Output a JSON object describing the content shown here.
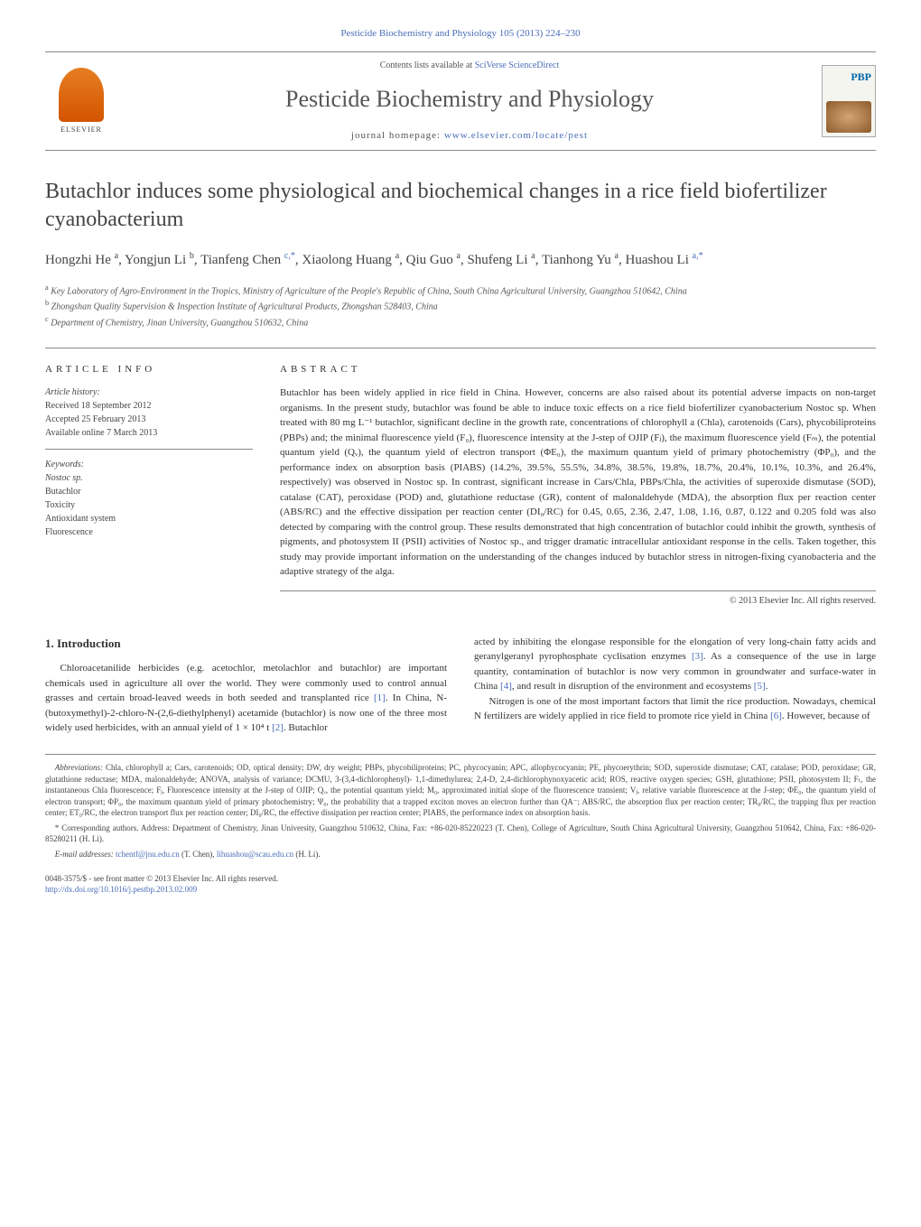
{
  "header": {
    "citation_link": "Pesticide Biochemistry and Physiology 105 (2013) 224–230",
    "contents_available": "Contents lists available at ",
    "sciencedirect": "SciVerse ScienceDirect",
    "journal_title": "Pesticide Biochemistry and Physiology",
    "homepage_label": "journal homepage: ",
    "homepage_url": "www.elsevier.com/locate/pest",
    "elsevier_label": "ELSEVIER",
    "cover_pbp": "PBP"
  },
  "article": {
    "title": "Butachlor induces some physiological and biochemical changes in a rice field biofertilizer cyanobacterium",
    "authors_html": "Hongzhi He <sup>a</sup>, Yongjun Li <sup>b</sup>, Tianfeng Chen <sup class='author-link'>c,*</sup>, Xiaolong Huang <sup>a</sup>, Qiu Guo <sup>a</sup>, Shufeng Li <sup>a</sup>, Tianhong Yu <sup>a</sup>, Huashou Li <sup class='author-link'>a,*</sup>",
    "affil_a": "Key Laboratory of Agro-Environment in the Tropics, Ministry of Agriculture of the People's Republic of China, South China Agricultural University, Guangzhou 510642, China",
    "affil_b": "Zhongshan Quality Supervision & Inspection Institute of Agricultural Products, Zhongshan 528403, China",
    "affil_c": "Department of Chemistry, Jinan University, Guangzhou 510632, China"
  },
  "info": {
    "label": "ARTICLE INFO",
    "history_label": "Article history:",
    "received": "Received 18 September 2012",
    "accepted": "Accepted 25 February 2013",
    "online": "Available online 7 March 2013",
    "keywords_label": "Keywords:",
    "kw1": "Nostoc sp.",
    "kw2": "Butachlor",
    "kw3": "Toxicity",
    "kw4": "Antioxidant system",
    "kw5": "Fluorescence"
  },
  "abstract": {
    "label": "ABSTRACT",
    "text": "Butachlor has been widely applied in rice field in China. However, concerns are also raised about its potential adverse impacts on non-target organisms. In the present study, butachlor was found be able to induce toxic effects on a rice field biofertilizer cyanobacterium Nostoc sp. When treated with 80 mg L⁻¹ butachlor, significant decline in the growth rate, concentrations of chlorophyll a (Chla), carotenoids (Cars), phycobiliproteins (PBPs) and; the minimal fluorescence yield (F₀), fluorescence intensity at the J-step of OJIP (Fⱼ), the maximum fluorescence yield (Fₘ), the potential quantum yield (Qᵥ), the quantum yield of electron transport (ΦE₀), the maximum quantum yield of primary photochemistry (ΦP₀), and the performance index on absorption basis (PIABS) (14.2%, 39.5%, 55.5%, 34.8%, 38.5%, 19.8%, 18.7%, 20.4%, 10.1%, 10.3%, and 26.4%, respectively) was observed in Nostoc sp. In contrast, significant increase in Cars/Chla, PBPs/Chla, the activities of superoxide dismutase (SOD), catalase (CAT), peroxidase (POD) and, glutathione reductase (GR), content of malonaldehyde (MDA), the absorption flux per reaction center (ABS/RC) and the effective dissipation per reaction center (DI₀/RC) for 0.45, 0.65, 2.36, 2.47, 1.08, 1.16, 0.87, 0.122 and 0.205 fold was also detected by comparing with the control group. These results demonstrated that high concentration of butachlor could inhibit the growth, synthesis of pigments, and photosystem II (PSII) activities of Nostoc sp., and trigger dramatic intracellular antioxidant response in the cells. Taken together, this study may provide important information on the understanding of the changes induced by butachlor stress in nitrogen-fixing cyanobacteria and the adaptive strategy of the alga.",
    "copyright": "© 2013 Elsevier Inc. All rights reserved."
  },
  "intro": {
    "heading": "1. Introduction",
    "para1_pre": "Chloroacetanilide herbicides (e.g. acetochlor, metolachlor and butachlor) are important chemicals used in agriculture all over the world. They were commonly used to control annual grasses and certain broad-leaved weeds in both seeded and transplanted rice ",
    "ref1": "[1]",
    "para1_mid": ". In China, N-(butoxymethyl)-2-chloro-N-(2,6-diethylphenyl) acetamide (butachlor) is now one of the three most widely used herbicides, with an annual yield of 1 × 10⁴ t ",
    "ref2": "[2]",
    "para1_end": ". Butachlor",
    "para2_pre": "acted by inhibiting the elongase responsible for the elongation of very long-chain fatty acids and geranylgeranyl pyrophosphate cyclisation enzymes ",
    "ref3": "[3]",
    "para2_mid": ". As a consequence of the use in large quantity, contamination of butachlor is now very common in groundwater and surface-water in China ",
    "ref4": "[4]",
    "para2_mid2": ", and result in disruption of the environment and ecosystems ",
    "ref5": "[5]",
    "para2_end": ".",
    "para3_pre": "Nitrogen is one of the most important factors that limit the rice production. Nowadays, chemical N fertilizers are widely applied in rice field to promote rice yield in China ",
    "ref6": "[6]",
    "para3_end": ". However, because of"
  },
  "footnotes": {
    "abbrev_label": "Abbreviations:",
    "abbrev_text": " Chla, chlorophyll a; Cars, carotenoids; OD, optical density; DW, dry weight; PBPs, phycobiliproteins; PC, phycocyanin; APC, allophycocyanin; PE, phycoerythrin; SOD, superoxide dismutase; CAT, catalase; POD, peroxidase; GR, glutathione reductase; MDA, malonaldehyde; ANOVA, analysis of variance; DCMU, 3-(3,4-dichlorophenyl)- 1,1-dimethylurea; 2,4-D, 2,4-dichlorophynoxyacetic acid; ROS, reactive oxygen species; GSH, glutathione; PSII, photosystem II; Fₜ, the instantaneous Chla fluorescence; Fⱼ, Fluorescence intensity at the J-step of OJIP; Qᵥ, the potential quantum yield; M₀, approximated initial slope of the fluorescence transient; Vⱼ, relative variable fluorescence at the J-step; ΦE₀, the quantum yield of electron transport; ΦP₀, the maximum quantum yield of primary photochemistry; Ψ₀, the probability that a trapped exciton moves an electron further than QA⁻; ABS/RC, the absorption flux per reaction center; TR₀/RC, the trapping flux per reaction center; ET₀/RC, the electron transport flux per reaction center; DI₀/RC, the effective dissipation per reaction center; PIABS, the performance index on absorption basis.",
    "corr_label": "* Corresponding authors.",
    "corr_text": " Address: Department of Chemistry, Jinan University, Guangzhou 510632, China, Fax: +86-020-85220223 (T. Chen), College of Agriculture, South China Agricultural University, Guangzhou 510642, China, Fax: +86-020-85280211 (H. Li).",
    "email_label": "E-mail addresses: ",
    "email1": "tchentf@jnu.edu.cn",
    "email1_name": " (T. Chen), ",
    "email2": "lihuashou@scau.edu.cn",
    "email2_name": " (H. Li)."
  },
  "bottom": {
    "front_matter": "0048-3575/$ - see front matter © 2013 Elsevier Inc. All rights reserved.",
    "doi": "http://dx.doi.org/10.1016/j.pestbp.2013.02.009"
  }
}
